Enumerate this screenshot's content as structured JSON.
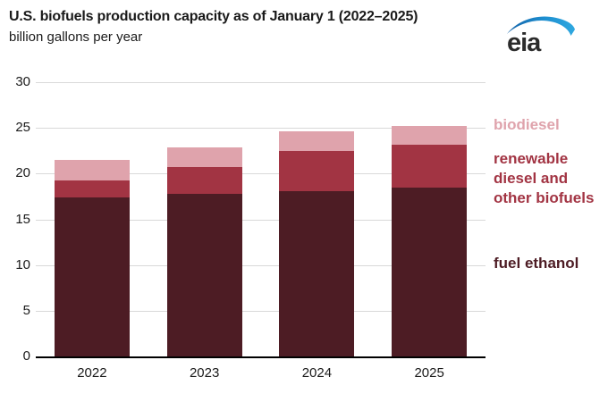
{
  "header": {
    "title": "U.S. biofuels production capacity as of January 1 (2022–2025)",
    "subtitle": "billion gallons per year",
    "logo_text": "eia"
  },
  "colors": {
    "fuel_ethanol": "#4d1c24",
    "renewable_diesel": "#a23443",
    "biodiesel": "#dfa3ac",
    "gridline": "#d9d9d9",
    "axis": "#000000",
    "eia_blue_dark": "#1563a8",
    "eia_blue_light": "#2fa8e0",
    "logo_text_color": "#2b2b2b",
    "text": "#1a1a1a"
  },
  "chart_data": {
    "type": "bar",
    "stacked": true,
    "title": "U.S. biofuels production capacity as of January 1 (2022–2025)",
    "subtitle": "billion gallons per year",
    "unit": "billion gallons per year",
    "categories": [
      "2022",
      "2023",
      "2024",
      "2025"
    ],
    "series": [
      {
        "name": "fuel ethanol",
        "color": "#4d1c24",
        "values": [
          17.4,
          17.8,
          18.1,
          18.5
        ]
      },
      {
        "name": "renewable diesel and other biofuels",
        "color": "#a23443",
        "values": [
          1.9,
          2.9,
          4.4,
          4.7
        ]
      },
      {
        "name": "biodiesel",
        "color": "#dfa3ac",
        "values": [
          2.2,
          2.2,
          2.1,
          2.0
        ]
      }
    ],
    "totals": [
      21.5,
      22.9,
      24.6,
      25.2
    ],
    "ylim": [
      0,
      30
    ],
    "yticks": [
      0,
      5,
      10,
      15,
      20,
      25,
      30
    ],
    "grid": true,
    "legend_position": "right"
  },
  "legend": {
    "items": [
      {
        "label": "biodiesel",
        "color": "#dfa3ac"
      },
      {
        "label": "renewable diesel and other biofuels",
        "color": "#a23443"
      },
      {
        "label": "fuel ethanol",
        "color": "#4d1c24"
      }
    ]
  }
}
